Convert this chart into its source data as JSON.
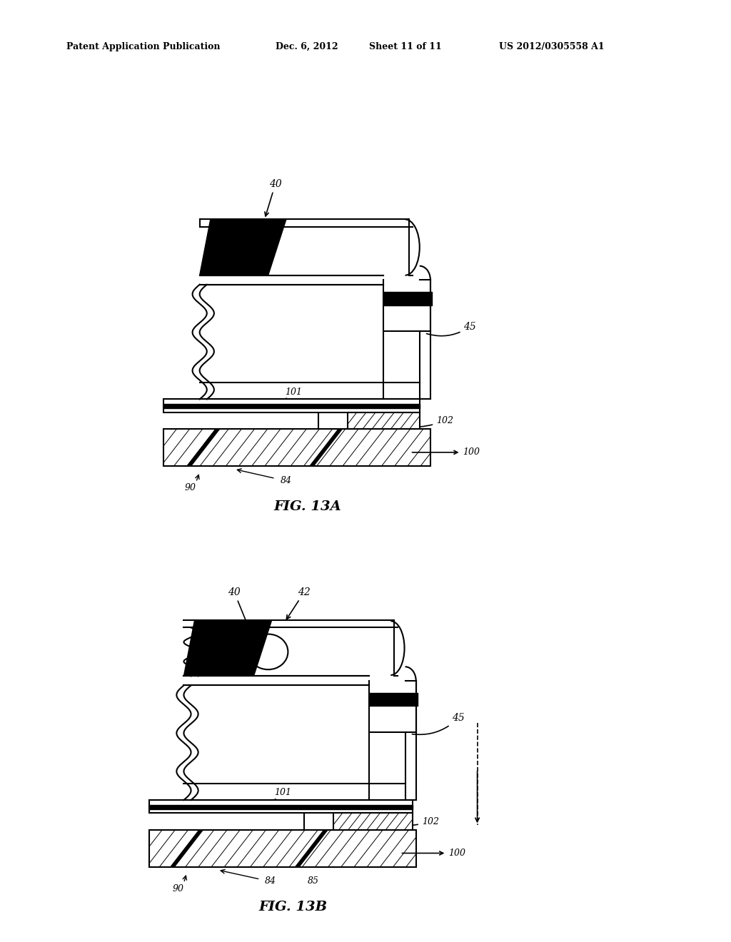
{
  "bg_color": "#ffffff",
  "line_color": "#000000",
  "header_text": "Patent Application Publication",
  "header_date": "Dec. 6, 2012",
  "header_sheet": "Sheet 11 of 11",
  "header_patent": "US 2012/0305558 A1",
  "fig_label_A": "FIG. 13A",
  "fig_label_B": "FIG. 13B",
  "lw_med": 1.5,
  "lw_thick": 4.0
}
